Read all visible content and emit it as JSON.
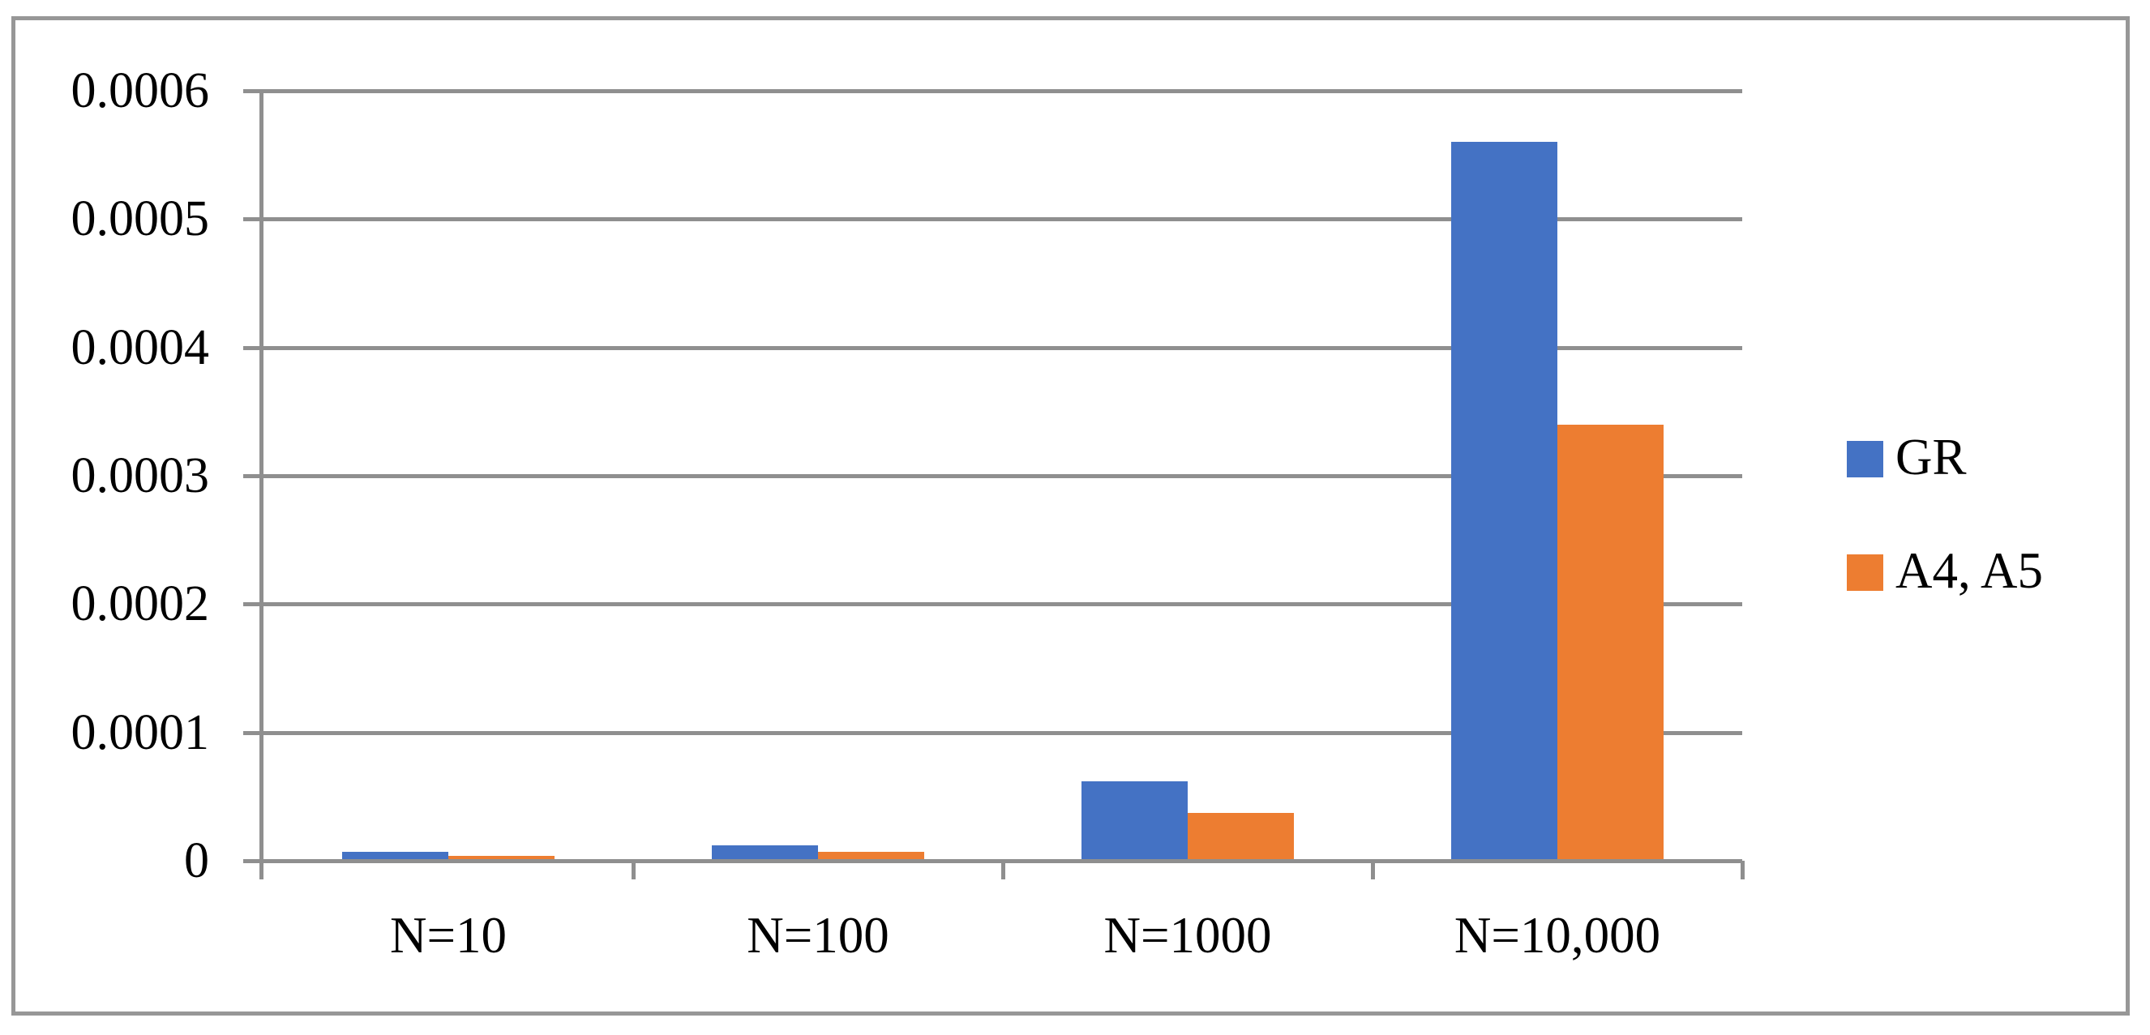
{
  "chart_data": {
    "type": "bar",
    "categories": [
      "N=10",
      "N=100",
      "N=1000",
      "N=10,000"
    ],
    "series": [
      {
        "name": "GR",
        "color": "#4472C4",
        "values": [
          7e-06,
          1.2e-05,
          6.2e-05,
          0.00056
        ]
      },
      {
        "name": "A4, A5",
        "color": "#ED7D31",
        "values": [
          4e-06,
          7e-06,
          3.7e-05,
          0.00034
        ]
      }
    ],
    "title": "",
    "xlabel": "",
    "ylabel": "",
    "ylim": [
      0,
      0.0006
    ],
    "ytick_step": 0.0001,
    "ytick_labels": [
      "0",
      "0.0001",
      "0.0002",
      "0.0003",
      "0.0004",
      "0.0005",
      "0.0006"
    ],
    "grid": true,
    "legend_position": "right"
  },
  "legend": {
    "items": [
      {
        "label": "GR",
        "color": "#4472C4"
      },
      {
        "label": "A4, A5",
        "color": "#ED7D31"
      }
    ]
  },
  "colors": {
    "bar_blue": "#4472C4",
    "bar_orange": "#ED7D31",
    "line_gray": "#8F8F8F",
    "frame_gray": "#979797",
    "text": "#000000",
    "background": "#FFFFFF"
  }
}
